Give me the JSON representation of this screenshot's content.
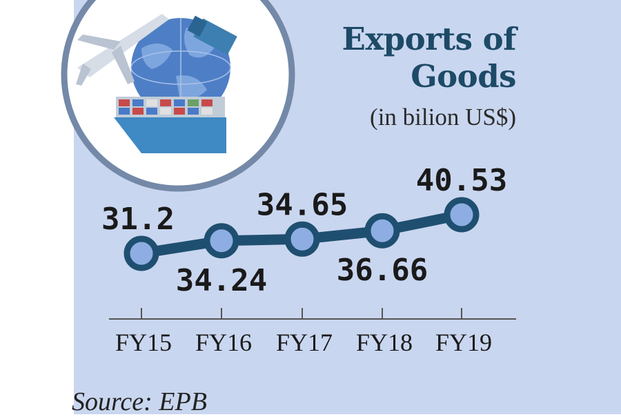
{
  "title_line1": "Exports of",
  "title_line2": "Goods",
  "subtitle": "(in bilion US$)",
  "source": "Source: EPB",
  "colors": {
    "background": "#c9d6ef",
    "line": "#1f4f70",
    "marker_fill": "#8eaee3",
    "title": "#1d4a66"
  },
  "illustration": {
    "icons": [
      "airplane-icon",
      "globe-icon",
      "truck-icon",
      "cargo-ship-icon"
    ]
  },
  "chart_data": {
    "type": "line",
    "title": "Exports of Goods",
    "subtitle": "(in bilion US$)",
    "categories": [
      "FY15",
      "FY16",
      "FY17",
      "FY18",
      "FY19"
    ],
    "series": [
      {
        "values": [
          31.2,
          34.24,
          34.65,
          36.66,
          40.53
        ]
      }
    ],
    "data_labels": [
      "31.2",
      "34.24",
      "34.65",
      "36.66",
      "40.53"
    ],
    "label_position": [
      "above",
      "below",
      "above",
      "below",
      "above"
    ],
    "grid": false,
    "legend": "none"
  }
}
